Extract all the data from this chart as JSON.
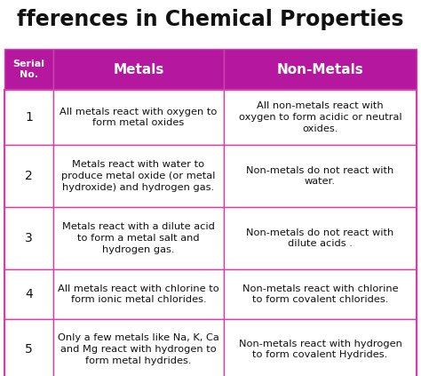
{
  "title": "fferences in Chemical Properties",
  "header_col0": "Serial\nNo.",
  "header_col1": "Metals",
  "header_col2": "Non-Metals",
  "header_bg": "#b5179e",
  "header_text_color": "#ffffff",
  "row_bg": "#ffffff",
  "border_color": "#cc44aa",
  "text_color": "#111111",
  "title_color": "#111111",
  "title_fontsize": 17,
  "header_fontsize": 11,
  "cell_fontsize": 8.2,
  "serial_fontsize": 10,
  "rows": [
    {
      "no": "1",
      "metals": "All metals react with oxygen to\nform metal oxides",
      "nonmetals": "All non-metals react with\noxygen to form acidic or neutral\noxides."
    },
    {
      "no": "2",
      "metals": "Metals react with water to\nproduce metal oxide (or metal\nhydroxide) and hydrogen gas.",
      "nonmetals": "Non-metals do not react with\nwater."
    },
    {
      "no": "3",
      "metals": "Metals react with a dilute acid\nto form a metal salt and\nhydrogen gas.",
      "nonmetals": "Non-metals do not react with\ndilute acids ."
    },
    {
      "no": "4",
      "metals": "All metals react with chlorine to\nform ionic metal chlorides.",
      "nonmetals": "Non-metals react with chlorine\nto form covalent chlorides."
    },
    {
      "no": "5",
      "metals": "Only a few metals like Na, K, Ca\nand Mg react with hydrogen to\nform metal hydrides.",
      "nonmetals": "Non-metals react with hydrogen\nto form covalent Hydrides."
    }
  ]
}
